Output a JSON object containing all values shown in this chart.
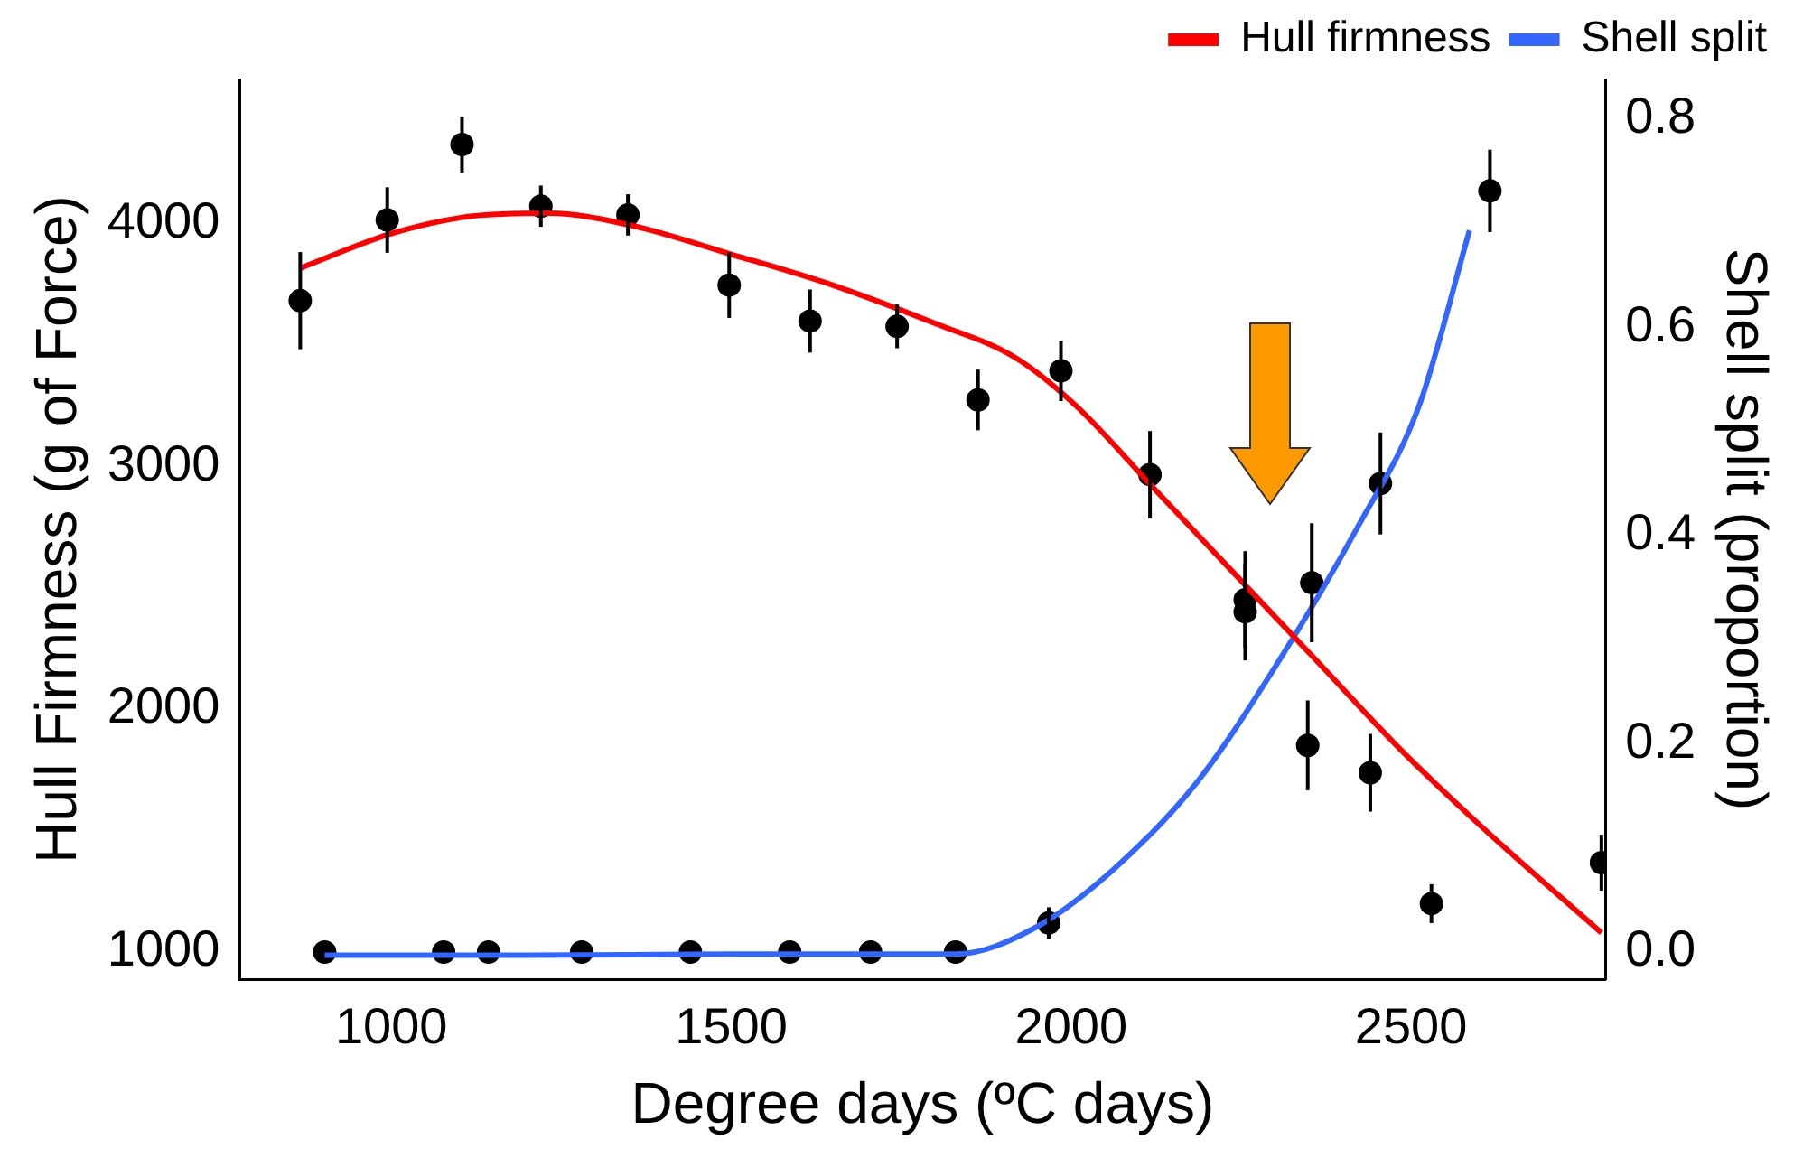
{
  "chart_data": {
    "type": "line",
    "xlabel": "Degree days (ºC days)",
    "ylabel": "Hull Firmness (g of Force)",
    "y2label": "Shell split (proportion)",
    "xlim": [
      777,
      2786
    ],
    "xticks": [
      1000,
      1500,
      2000,
      2500
    ],
    "ylim": [
      887,
      4593
    ],
    "yticks": [
      1000,
      2000,
      3000,
      4000
    ],
    "y2lim": [
      -0.026,
      0.838
    ],
    "y2ticks": [
      {
        "value": 0,
        "label": "0.0"
      },
      0.2,
      0.4,
      0.6,
      0.8
    ],
    "grid": false,
    "legend": "top right",
    "line_style": "solid",
    "series": [
      {
        "name": "Hull firmness",
        "type": "line",
        "color": "#ff0000",
        "marker": "none",
        "x": [
          866,
          1000,
          1113,
          1232,
          1351,
          1500,
          1649,
          1798,
          1917,
          2006,
          2125,
          2244,
          2363,
          2482,
          2601,
          2780
        ],
        "values": [
          3816,
          3958,
          4028,
          4042,
          3993,
          3873,
          3746,
          3590,
          3449,
          3252,
          2899,
          2546,
          2193,
          1840,
          1522,
          1078
        ]
      },
      {
        "name": "Shell split",
        "type": "line",
        "axis": "y2",
        "color": "#3366ff",
        "marker": "none",
        "x": [
          902,
          1200,
          1500,
          1830,
          1946,
          2065,
          2185,
          2304,
          2423,
          2512,
          2586
        ],
        "values": [
          -0.003,
          -0.003,
          -0.002,
          -0.002,
          0.023,
          0.081,
          0.163,
          0.278,
          0.41,
          0.525,
          0.693
        ]
      },
      {
        "type": "scatter",
        "color": "#000000",
        "marker": "circle",
        "x": [
          866,
          994,
          1104,
          1220,
          1348,
          1497,
          1616,
          1744,
          1863,
          1985,
          2116,
          2256,
          2256,
          2354,
          2348,
          2440,
          2455,
          2530,
          2616,
          2780
        ],
        "values": [
          3682,
          4014,
          4325,
          4071,
          4035,
          3746,
          3598,
          3576,
          3273,
          3393,
          2965,
          2450,
          2400,
          2520,
          1850,
          1737,
          2929,
          1198,
          4134,
          1367
        ],
        "errors": [
          200,
          135,
          115,
          85,
          85,
          135,
          130,
          90,
          125,
          125,
          180,
          200,
          200,
          245,
          185,
          160,
          210,
          80,
          170,
          115
        ]
      },
      {
        "type": "scatter",
        "axis": "y2",
        "color": "#000000",
        "marker": "circle",
        "x": [
          902,
          1077,
          1143,
          1280,
          1440,
          1586,
          1705,
          1830,
          1967
        ],
        "values": [
          0,
          0,
          0,
          0,
          0,
          0,
          0,
          0,
          0.028
        ],
        "errors": [
          null,
          null,
          null,
          null,
          null,
          null,
          null,
          null,
          0.015
        ]
      }
    ]
  }
}
